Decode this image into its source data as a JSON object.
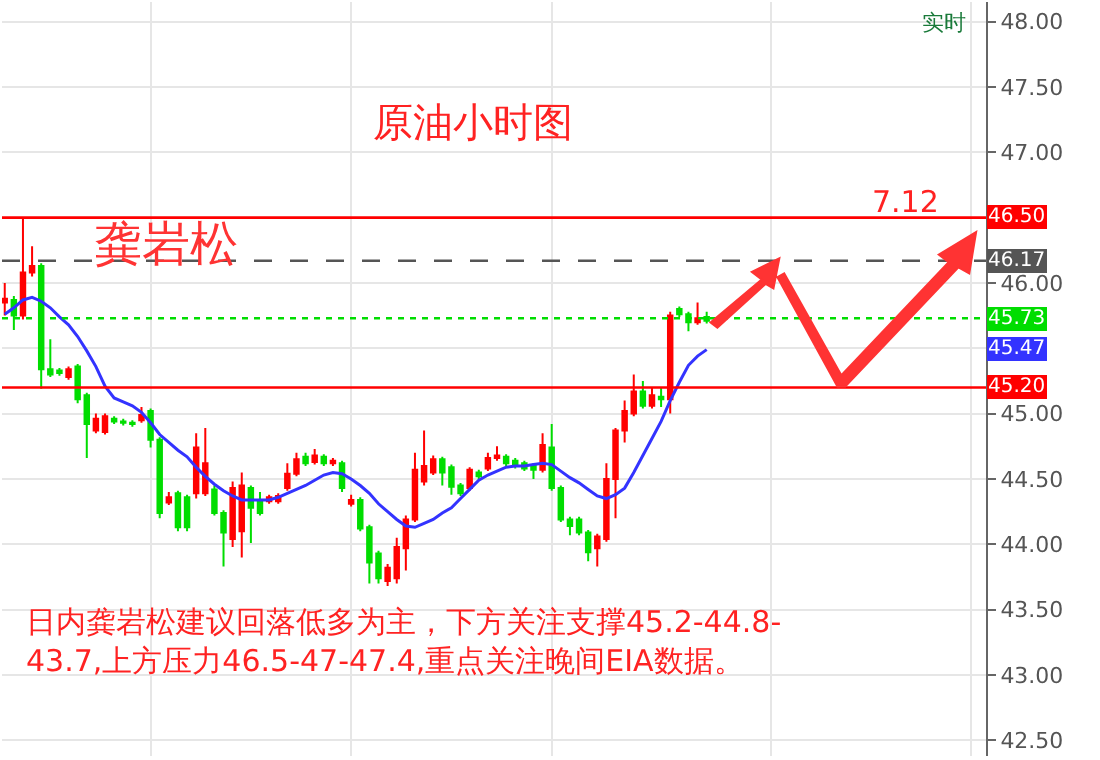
{
  "chart_data": {
    "type": "candlestick",
    "title": "原油小时图",
    "categories": [
      null,
      null,
      null,
      null,
      null,
      null,
      null,
      null,
      null,
      null,
      null,
      null,
      null,
      null,
      null,
      null,
      null,
      null,
      null,
      null,
      null,
      null,
      null,
      null,
      null,
      null,
      null,
      null,
      null,
      null,
      null,
      null,
      null,
      null,
      null,
      null,
      null,
      null,
      null,
      null,
      null,
      null,
      null,
      null,
      null,
      null,
      null,
      null,
      null,
      null,
      null,
      null,
      null,
      null,
      null,
      null,
      null,
      null,
      null,
      null,
      null,
      null,
      null,
      null,
      null,
      null,
      null,
      null,
      null,
      null,
      null,
      null,
      null,
      null,
      null,
      null,
      null,
      null
    ],
    "ohlc": [
      [
        45.85,
        46.0,
        45.75,
        45.88
      ],
      [
        45.87,
        45.9,
        45.64,
        45.75
      ],
      [
        45.75,
        46.5,
        45.72,
        46.08
      ],
      [
        46.08,
        46.28,
        46.05,
        46.13
      ],
      [
        46.13,
        46.15,
        45.19,
        45.34
      ],
      [
        45.34,
        45.57,
        45.28,
        45.3
      ],
      [
        45.33,
        45.35,
        45.29,
        45.31
      ],
      [
        45.28,
        45.36,
        45.26,
        45.34
      ],
      [
        45.36,
        45.38,
        45.08,
        45.11
      ],
      [
        45.14,
        45.16,
        44.66,
        44.92
      ],
      [
        44.87,
        45.0,
        44.85,
        44.96
      ],
      [
        44.86,
        45.0,
        44.84,
        44.98
      ],
      [
        44.96,
        44.98,
        44.92,
        44.94
      ],
      [
        44.94,
        44.96,
        44.91,
        44.93
      ],
      [
        44.93,
        44.95,
        44.9,
        44.92
      ],
      [
        44.95,
        45.05,
        44.93,
        44.99
      ],
      [
        45.02,
        45.04,
        44.74,
        44.8
      ],
      [
        44.8,
        44.82,
        44.2,
        44.24
      ],
      [
        44.32,
        44.4,
        44.3,
        44.36
      ],
      [
        44.39,
        44.41,
        44.1,
        44.13
      ],
      [
        44.36,
        44.38,
        44.1,
        44.13
      ],
      [
        44.39,
        44.85,
        44.35,
        44.74
      ],
      [
        44.39,
        44.89,
        44.37,
        44.62
      ],
      [
        44.42,
        44.45,
        44.22,
        44.24
      ],
      [
        44.24,
        44.26,
        43.83,
        44.09
      ],
      [
        44.04,
        44.48,
        43.98,
        44.43
      ],
      [
        44.1,
        44.55,
        43.9,
        44.45
      ],
      [
        44.43,
        44.45,
        44.01,
        44.28
      ],
      [
        44.33,
        44.4,
        44.22,
        44.24
      ],
      [
        44.33,
        44.38,
        44.31,
        44.36
      ],
      [
        44.33,
        44.39,
        44.31,
        44.37
      ],
      [
        44.43,
        44.62,
        44.41,
        44.54
      ],
      [
        44.54,
        44.7,
        44.52,
        44.65
      ],
      [
        44.67,
        44.7,
        44.6,
        44.62
      ],
      [
        44.63,
        44.73,
        44.61,
        44.68
      ],
      [
        44.67,
        44.69,
        44.6,
        44.62
      ],
      [
        44.62,
        44.66,
        44.6,
        44.64
      ],
      [
        44.62,
        44.64,
        44.4,
        44.43
      ],
      [
        44.31,
        44.38,
        44.29,
        44.34
      ],
      [
        44.34,
        44.36,
        44.1,
        44.12
      ],
      [
        44.13,
        44.15,
        43.7,
        43.86
      ],
      [
        43.93,
        43.95,
        43.7,
        43.74
      ],
      [
        43.72,
        43.85,
        43.68,
        43.82
      ],
      [
        43.74,
        44.05,
        43.7,
        43.98
      ],
      [
        43.97,
        44.22,
        43.8,
        44.19
      ],
      [
        44.19,
        44.7,
        44.17,
        44.57
      ],
      [
        44.48,
        44.87,
        44.45,
        44.6
      ],
      [
        44.55,
        44.68,
        44.53,
        44.65
      ],
      [
        44.65,
        44.67,
        44.45,
        44.55
      ],
      [
        44.59,
        44.61,
        44.38,
        44.44
      ],
      [
        44.45,
        44.47,
        44.37,
        44.39
      ],
      [
        44.43,
        44.59,
        44.41,
        44.57
      ],
      [
        44.55,
        44.57,
        44.5,
        44.52
      ],
      [
        44.58,
        44.7,
        44.56,
        44.66
      ],
      [
        44.66,
        44.75,
        44.64,
        44.68
      ],
      [
        44.67,
        44.69,
        44.6,
        44.62
      ],
      [
        44.64,
        44.66,
        44.58,
        44.6
      ],
      [
        44.62,
        44.64,
        44.56,
        44.58
      ],
      [
        44.6,
        44.62,
        44.5,
        44.57
      ],
      [
        44.57,
        44.85,
        44.55,
        44.76
      ],
      [
        44.74,
        44.92,
        44.41,
        44.43
      ],
      [
        44.43,
        44.45,
        44.17,
        44.19
      ],
      [
        44.19,
        44.21,
        44.07,
        44.14
      ],
      [
        44.19,
        44.21,
        44.07,
        44.09
      ],
      [
        44.09,
        44.11,
        43.87,
        43.94
      ],
      [
        43.97,
        44.08,
        43.83,
        44.06
      ],
      [
        44.04,
        44.62,
        44.02,
        44.5
      ],
      [
        44.5,
        44.89,
        44.2,
        44.87
      ],
      [
        44.87,
        45.1,
        44.78,
        45.02
      ],
      [
        45.0,
        45.3,
        44.98,
        45.17
      ],
      [
        45.17,
        45.25,
        45.04,
        45.06
      ],
      [
        45.06,
        45.2,
        45.04,
        45.14
      ],
      [
        45.13,
        45.2,
        45.05,
        45.11
      ],
      [
        45.11,
        45.78,
        45.0,
        45.75
      ],
      [
        45.8,
        45.82,
        45.74,
        45.76
      ],
      [
        45.76,
        45.78,
        45.63,
        45.7
      ],
      [
        45.7,
        45.85,
        45.68,
        45.73
      ],
      [
        45.74,
        45.78,
        45.69,
        45.71
      ]
    ],
    "colors": [
      "#ff0000",
      "#00dd00",
      "#ff0000",
      "#ff0000",
      "#00dd00",
      "#00dd00",
      "#00dd00",
      "#ff0000",
      "#00dd00",
      "#00dd00",
      "#ff0000",
      "#ff0000",
      "#00dd00",
      "#00dd00",
      "#00dd00",
      "#ff0000",
      "#00dd00",
      "#00dd00",
      "#ff0000",
      "#00dd00",
      "#00dd00",
      "#ff0000",
      "#ff0000",
      "#00dd00",
      "#00dd00",
      "#ff0000",
      "#ff0000",
      "#00dd00",
      "#00dd00",
      "#ff0000",
      "#ff0000",
      "#ff0000",
      "#ff0000",
      "#00dd00",
      "#ff0000",
      "#00dd00",
      "#ff0000",
      "#00dd00",
      "#ff0000",
      "#00dd00",
      "#00dd00",
      "#00dd00",
      "#ff0000",
      "#ff0000",
      "#ff0000",
      "#ff0000",
      "#ff0000",
      "#ff0000",
      "#00dd00",
      "#00dd00",
      "#00dd00",
      "#ff0000",
      "#00dd00",
      "#ff0000",
      "#ff0000",
      "#00dd00",
      "#00dd00",
      "#00dd00",
      "#00dd00",
      "#ff0000",
      "#00dd00",
      "#00dd00",
      "#00dd00",
      "#00dd00",
      "#00dd00",
      "#ff0000",
      "#ff0000",
      "#ff0000",
      "#ff0000",
      "#ff0000",
      "#00dd00",
      "#ff0000",
      "#00dd00",
      "#ff0000",
      "#00dd00",
      "#00dd00",
      "#ff0000",
      "#00dd00"
    ],
    "series": [
      {
        "type": "line",
        "color": "#3333ff",
        "values": [
          45.76,
          45.81,
          45.87,
          45.89,
          45.86,
          45.81,
          45.74,
          45.68,
          45.59,
          45.48,
          45.36,
          45.21,
          45.12,
          45.09,
          45.06,
          45.01,
          44.93,
          44.84,
          44.78,
          44.72,
          44.67,
          44.59,
          44.52,
          44.46,
          44.41,
          44.37,
          44.34,
          44.34,
          44.34,
          44.34,
          44.36,
          44.39,
          44.42,
          44.45,
          44.49,
          44.53,
          44.55,
          44.54,
          44.5,
          44.45,
          44.39,
          44.31,
          44.25,
          44.19,
          44.14,
          44.13,
          44.16,
          44.19,
          44.24,
          44.28,
          44.35,
          44.42,
          44.49,
          44.53,
          44.56,
          44.59,
          44.6,
          44.6,
          44.61,
          44.62,
          44.61,
          44.56,
          44.51,
          44.47,
          44.42,
          44.37,
          44.35,
          44.38,
          44.43,
          44.55,
          44.68,
          44.81,
          44.94,
          45.1,
          45.24,
          45.37,
          45.44,
          45.49
        ]
      }
    ],
    "ylim": [
      42.38,
      48.15
    ],
    "yticks": [
      {
        "value": 42.5,
        "label": "42.50"
      },
      {
        "value": 43,
        "label": "43.00"
      },
      {
        "value": 43.5,
        "label": "43.50"
      },
      {
        "value": 44,
        "label": "44.00"
      },
      {
        "value": 44.5,
        "label": "44.50"
      },
      {
        "value": 45,
        "label": "45.00"
      },
      {
        "value": 45.5,
        "label": null
      },
      {
        "value": 46,
        "label": "46.00"
      },
      {
        "value": 46.5,
        "label": null
      },
      {
        "value": 47,
        "label": "47.00"
      },
      {
        "value": 47.5,
        "label": "47.50"
      },
      {
        "value": 48,
        "label": "48.00"
      }
    ],
    "ref_lines": [
      {
        "axis": "y",
        "value": 46.5,
        "label": "46.50",
        "color": "#ff0000",
        "line_style": "solid"
      },
      {
        "axis": "y",
        "value": 46.17,
        "label": "46.17",
        "color": "#555555",
        "line_style": "dashed"
      },
      {
        "axis": "y",
        "value": 45.73,
        "label": "45.73",
        "color": "#00dd00",
        "line_style": "dotted"
      },
      {
        "axis": "y",
        "value": 45.2,
        "label": "45.20",
        "color": "#ff0000",
        "line_style": "solid"
      }
    ],
    "annotations": [
      "龚岩松",
      "7.12",
      "实时",
      "日内龚岩松建议回落低多为主，下方关注支撑45.2-44.8-\n43.7,上方压力46.5-47-47.4,重点关注晚间EIA数据。",
      "45.47"
    ],
    "grid": true,
    "tick_labels": "y",
    "marker": "none"
  }
}
